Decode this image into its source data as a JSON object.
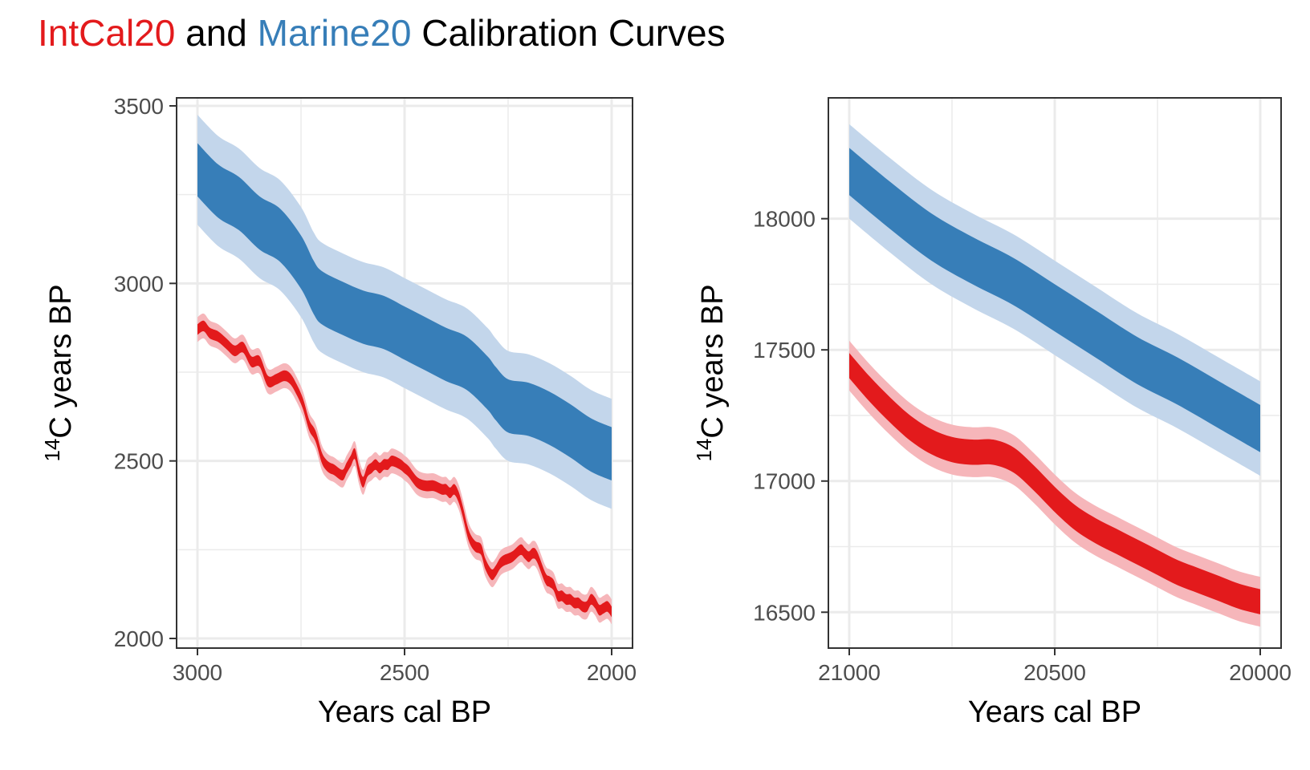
{
  "title": {
    "part1": "IntCal20",
    "part2": " and ",
    "part3": "Marine20",
    "part4": " Calibration Curves"
  },
  "colors": {
    "intcal_dark": "#e31a1c",
    "intcal_light": "#f6b6ba",
    "marine_dark": "#377eb8",
    "marine_light": "#c3d6eb",
    "grid": "#ebebeb",
    "text": "#000000",
    "tick_text": "#4d4d4d"
  },
  "chart_data": [
    {
      "type": "area",
      "xlabel": "Years cal BP",
      "ylabel_sup": "14",
      "ylabel_main": "C years BP",
      "xlim": [
        3000,
        2000
      ],
      "ylim": [
        2000,
        3500
      ],
      "x_reversed": true,
      "x_ticks": [
        3000,
        2500,
        2000
      ],
      "y_ticks": [
        2000,
        2500,
        3000,
        3500
      ],
      "x_tick_labels": [
        "3000",
        "2500",
        "2000"
      ],
      "y_tick_labels": [
        "2000",
        "2500",
        "3000",
        "3500"
      ],
      "grid": true,
      "series": [
        {
          "name": "Marine20",
          "x": [
            3000,
            2950,
            2900,
            2850,
            2800,
            2750,
            2720,
            2700,
            2650,
            2600,
            2550,
            2500,
            2450,
            2400,
            2350,
            2300,
            2280,
            2250,
            2200,
            2150,
            2100,
            2050,
            2000
          ],
          "y": [
            3320,
            3260,
            3225,
            3170,
            3135,
            3060,
            2990,
            2960,
            2930,
            2905,
            2890,
            2860,
            2830,
            2800,
            2775,
            2720,
            2690,
            2655,
            2645,
            2620,
            2585,
            2545,
            2520
          ],
          "band1": 75,
          "band2": 155
        },
        {
          "name": "IntCal20",
          "x": [
            3000,
            2985,
            2970,
            2950,
            2930,
            2910,
            2890,
            2870,
            2850,
            2830,
            2810,
            2790,
            2775,
            2760,
            2745,
            2730,
            2715,
            2700,
            2690,
            2680,
            2670,
            2650,
            2640,
            2630,
            2620,
            2610,
            2600,
            2590,
            2580,
            2570,
            2560,
            2550,
            2540,
            2530,
            2510,
            2500,
            2490,
            2470,
            2450,
            2430,
            2410,
            2400,
            2390,
            2380,
            2370,
            2360,
            2345,
            2330,
            2315,
            2305,
            2290,
            2280,
            2270,
            2260,
            2240,
            2220,
            2210,
            2200,
            2190,
            2180,
            2160,
            2150,
            2140,
            2130,
            2120,
            2110,
            2100,
            2090,
            2080,
            2070,
            2060,
            2050,
            2040,
            2030,
            2020,
            2010,
            2000
          ],
          "y": [
            2870,
            2880,
            2860,
            2850,
            2830,
            2810,
            2820,
            2780,
            2780,
            2725,
            2730,
            2740,
            2730,
            2700,
            2660,
            2600,
            2570,
            2510,
            2490,
            2480,
            2475,
            2460,
            2480,
            2500,
            2520,
            2470,
            2440,
            2470,
            2480,
            2490,
            2480,
            2490,
            2490,
            2500,
            2490,
            2480,
            2470,
            2440,
            2430,
            2430,
            2420,
            2420,
            2410,
            2420,
            2400,
            2360,
            2290,
            2260,
            2250,
            2210,
            2180,
            2190,
            2210,
            2220,
            2230,
            2250,
            2240,
            2230,
            2240,
            2230,
            2170,
            2160,
            2150,
            2120,
            2120,
            2110,
            2110,
            2100,
            2100,
            2090,
            2090,
            2110,
            2100,
            2080,
            2085,
            2090,
            2075
          ],
          "band1": 15,
          "band2": 35
        }
      ]
    },
    {
      "type": "area",
      "xlabel": "Years cal BP",
      "ylabel_sup": "14",
      "ylabel_main": "C years BP",
      "xlim": [
        21000,
        20000
      ],
      "ylim": [
        16400,
        18430
      ],
      "x_reversed": true,
      "x_ticks": [
        21000,
        20500,
        20000
      ],
      "y_ticks": [
        16500,
        17000,
        17500,
        18000
      ],
      "x_tick_labels": [
        "21000",
        "20500",
        "20000"
      ],
      "y_tick_labels": [
        "16500",
        "17000",
        "17500",
        "18000"
      ],
      "grid": true,
      "series": [
        {
          "name": "Marine20",
          "x": [
            21000,
            20900,
            20800,
            20700,
            20600,
            20500,
            20400,
            20300,
            20200,
            20100,
            20000
          ],
          "y": [
            18180,
            18050,
            17930,
            17840,
            17760,
            17660,
            17560,
            17460,
            17380,
            17290,
            17200
          ],
          "band1": 90,
          "band2": 180
        },
        {
          "name": "IntCal20",
          "x": [
            21000,
            20950,
            20900,
            20850,
            20800,
            20750,
            20700,
            20650,
            20600,
            20550,
            20500,
            20450,
            20400,
            20350,
            20300,
            20250,
            20200,
            20150,
            20100,
            20050,
            20000
          ],
          "y": [
            17440,
            17350,
            17270,
            17200,
            17150,
            17120,
            17110,
            17110,
            17080,
            17010,
            16930,
            16860,
            16810,
            16770,
            16730,
            16690,
            16650,
            16620,
            16590,
            16560,
            16540
          ],
          "band1": 48,
          "band2": 95
        }
      ]
    }
  ]
}
